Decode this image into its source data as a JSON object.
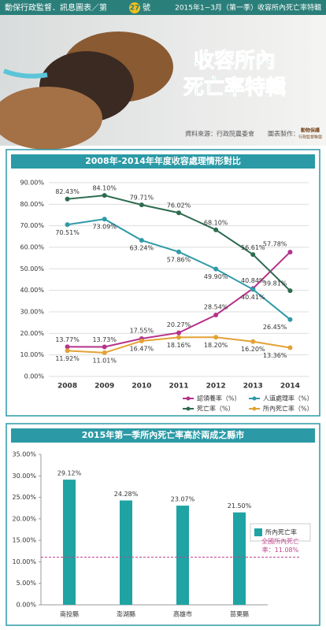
{
  "header": {
    "series_label": "動保行政監督．訊息圖表／第",
    "issue": "27",
    "issue_suffix": "號",
    "period": "2015年1~3月（第一季）收容所內死亡率特輯"
  },
  "banner": {
    "title_line1": "收容所內",
    "title_line2": "死亡率特輯",
    "source": "資料來源：行政院農委會",
    "maker": "圖表製作：",
    "logo_line1": "動物保護",
    "logo_line2": "行政監督聯盟"
  },
  "chart_data": [
    {
      "type": "line",
      "title": "2008年-2014年年度收容處理情形對比",
      "categories": [
        "2008",
        "2009",
        "2010",
        "2011",
        "2012",
        "2013",
        "2014"
      ],
      "series": [
        {
          "name": "認領養率（%）",
          "color": "#b5338a",
          "values": [
            13.77,
            13.73,
            17.55,
            20.27,
            28.54,
            40.84,
            57.78
          ],
          "value_labels": [
            "13.77%",
            "13.73%",
            "17.55%",
            "20.27%",
            "28.54%",
            "40.84%",
            "57.78%"
          ]
        },
        {
          "name": "人道處理率（%）",
          "color": "#2f9aa8",
          "values": [
            70.51,
            73.09,
            63.24,
            57.86,
            49.9,
            40.41,
            26.45
          ],
          "value_labels": [
            "70.51%",
            "73.09%",
            "63.24%",
            "57.86%",
            "49.90%",
            "40.41%",
            "26.45%"
          ]
        },
        {
          "name": "死亡率（%）",
          "color": "#2d6b4f",
          "values": [
            82.43,
            84.1,
            79.71,
            76.02,
            68.1,
            56.61,
            39.81
          ],
          "value_labels": [
            "82.43%",
            "84.10%",
            "79.71%",
            "76.02%",
            "68.10%",
            "56.61%",
            "39.81%"
          ]
        },
        {
          "name": "所內死亡率（%）",
          "color": "#e2a234",
          "values": [
            11.92,
            11.01,
            16.47,
            18.16,
            18.2,
            16.2,
            13.36
          ],
          "value_labels": [
            "11.92%",
            "11.01%",
            "16.47%",
            "18.16%",
            "18.20%",
            "16.20%",
            "13.36%"
          ]
        }
      ],
      "ylim": [
        0,
        90
      ],
      "yticks": [
        {
          "value": 0,
          "label": "0.00%"
        },
        {
          "value": 10,
          "label": "10.00%"
        },
        {
          "value": 20,
          "label": "20.00%"
        },
        {
          "value": 30,
          "label": "30.00%"
        },
        {
          "value": 40,
          "label": "40.00%"
        },
        {
          "value": 50,
          "label": "50.00%"
        },
        {
          "value": 60,
          "label": "60.00%"
        },
        {
          "value": 70,
          "label": "70.00%"
        },
        {
          "value": 80,
          "label": "80.00%"
        },
        {
          "value": 90,
          "label": "90.00%"
        }
      ],
      "grid": true,
      "legend": "bottom"
    },
    {
      "type": "bar",
      "title": "2015年第一季所內死亡率高於兩成之縣市",
      "categories": [
        "南投縣",
        "澎湖縣",
        "高雄市",
        "苗栗縣"
      ],
      "series": [
        {
          "name": "所內死亡率",
          "color": "#1fa3a3",
          "values": [
            29.12,
            24.28,
            23.07,
            21.5
          ],
          "value_labels": [
            "29.12%",
            "24.28%",
            "23.07%",
            "21.50%"
          ]
        }
      ],
      "reference": {
        "value": 11.08,
        "label": "全國所內死亡率：11.08%",
        "color": "#c0458f"
      },
      "ylim": [
        0,
        35
      ],
      "yticks": [
        {
          "value": 0,
          "label": "0.00%"
        },
        {
          "value": 5,
          "label": "5.00%"
        },
        {
          "value": 10,
          "label": "10.00%"
        },
        {
          "value": 15,
          "label": "15.00%"
        },
        {
          "value": 20,
          "label": "20.00%"
        },
        {
          "value": 25,
          "label": "25.00%"
        },
        {
          "value": 30,
          "label": "30.00%"
        },
        {
          "value": 35,
          "label": "35.00%"
        }
      ],
      "grid": false,
      "legend": "right"
    }
  ]
}
